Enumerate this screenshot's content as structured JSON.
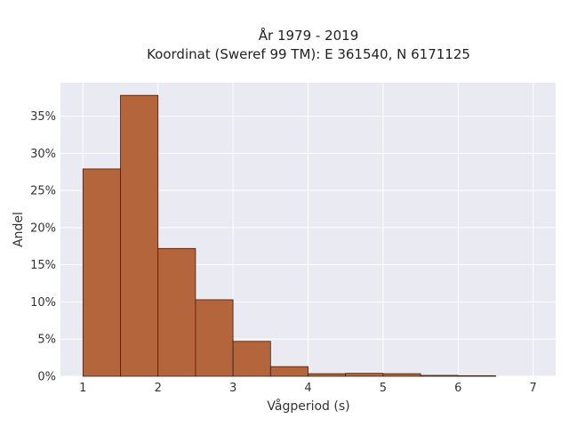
{
  "chart_data": {
    "type": "bar",
    "title_lines": [
      "År 1979 - 2019",
      "Koordinat (Sweref 99 TM): E 361540, N 6171125"
    ],
    "xlabel": "Vågperiod (s)",
    "ylabel": "Andel",
    "bins": [
      {
        "x0": 1.0,
        "x1": 1.5,
        "value": 27.9
      },
      {
        "x0": 1.5,
        "x1": 2.0,
        "value": 37.8
      },
      {
        "x0": 2.0,
        "x1": 2.5,
        "value": 17.2
      },
      {
        "x0": 2.5,
        "x1": 3.0,
        "value": 10.3
      },
      {
        "x0": 3.0,
        "x1": 3.5,
        "value": 4.7
      },
      {
        "x0": 3.5,
        "x1": 4.0,
        "value": 1.3
      },
      {
        "x0": 4.0,
        "x1": 4.5,
        "value": 0.35
      },
      {
        "x0": 4.5,
        "x1": 5.0,
        "value": 0.4
      },
      {
        "x0": 5.0,
        "x1": 5.5,
        "value": 0.35
      },
      {
        "x0": 5.5,
        "x1": 6.0,
        "value": 0.12
      },
      {
        "x0": 6.0,
        "x1": 6.5,
        "value": 0.08
      }
    ],
    "xticks": [
      1,
      2,
      3,
      4,
      5,
      6,
      7
    ],
    "yticks": [
      0,
      5,
      10,
      15,
      20,
      25,
      30,
      35
    ],
    "ytick_suffix": "%",
    "xlim": [
      0.7,
      7.3
    ],
    "ylim": [
      0,
      39.5
    ],
    "grid": true,
    "bar_color": "#b5653b",
    "bar_edge_color": "#3a2010",
    "plot_background": "#eaeaf2"
  }
}
